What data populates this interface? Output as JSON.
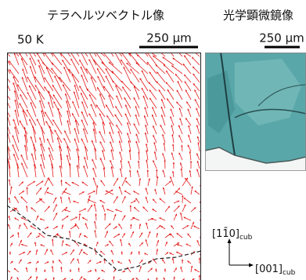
{
  "left_panel": {
    "title": "テラヘルツベクトル像",
    "temperature": "50 K",
    "scale_bar": "250 μm"
  },
  "right_panel": {
    "title": "光学顕微鏡像",
    "scale_bar": "250 μm"
  },
  "axes": {
    "vertical": {
      "label": "[11̄0]",
      "subscript": "cub"
    },
    "horizontal": {
      "label": "[001]",
      "subscript": "cub"
    }
  }
}
